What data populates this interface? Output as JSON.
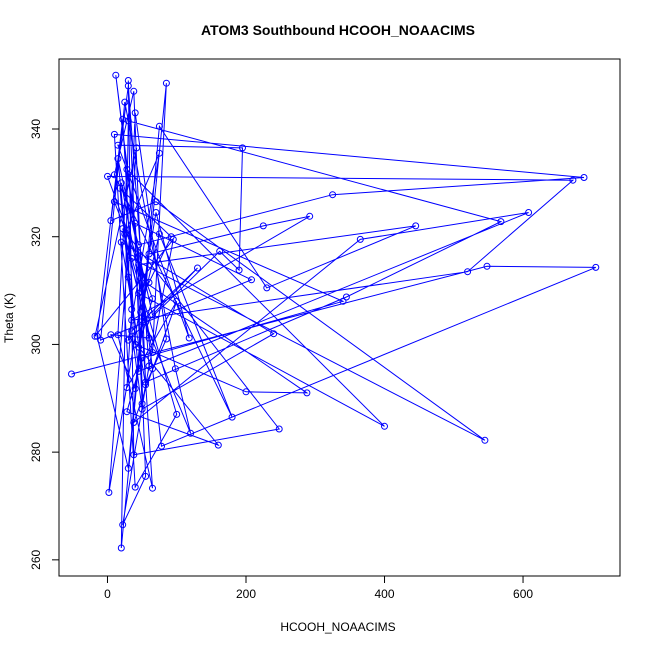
{
  "chart_data": {
    "type": "line",
    "title": "ATOM3 Southbound HCOOH_NOAACIMS",
    "xlabel": "HCOOH_NOAACIMS",
    "ylabel": "Theta (K)",
    "xlim": [
      -70,
      740
    ],
    "ylim": [
      257,
      353
    ],
    "xticks": [
      0,
      200,
      400,
      600
    ],
    "yticks": [
      260,
      280,
      300,
      320,
      340
    ],
    "grid": false,
    "legend": "none",
    "colors": {
      "series": "#0000ff",
      "axes": "#000000"
    },
    "series": [
      {
        "points": [
          [
            -52,
            294.5
          ],
          [
            548,
            314.5
          ],
          [
            705,
            314.3
          ],
          [
            78,
            281.1
          ],
          [
            65,
            295.5
          ],
          [
            12,
            350.0
          ],
          [
            55,
            304.1
          ],
          [
            22,
            321.5
          ],
          [
            248,
            284.3
          ],
          [
            38,
            279.5
          ],
          [
            30,
            349.0
          ],
          [
            50,
            289.0
          ],
          [
            95,
            319.5
          ],
          [
            -18,
            301.5
          ],
          [
            42,
            336.5
          ],
          [
            2,
            272.5
          ],
          [
            70,
            324.5
          ],
          [
            118,
            301.2
          ],
          [
            15,
            337.0
          ],
          [
            195,
            336.5
          ],
          [
            190,
            313.8
          ],
          [
            162,
            317.3
          ],
          [
            30,
            300.8
          ],
          [
            75,
            335.5
          ],
          [
            25,
            320.5
          ],
          [
            60,
            301.2
          ],
          [
            5,
            301.8
          ],
          [
            40,
            291.8
          ],
          [
            85,
            348.5
          ],
          [
            65,
            298.5
          ],
          [
            20,
            330.0
          ],
          [
            45,
            318.5
          ],
          [
            325,
            327.8
          ],
          [
            688,
            331.0
          ],
          [
            10,
            339.0
          ],
          [
            40,
            273.5
          ],
          [
            100,
            287.0
          ],
          [
            35,
            316.0
          ],
          [
            545,
            282.2
          ],
          [
            70,
            326.5
          ],
          [
            5,
            323.0
          ],
          [
            30,
            348.0
          ],
          [
            60,
            296.0
          ],
          [
            22,
            266.5
          ],
          [
            55,
            275.5
          ],
          [
            45,
            309.5
          ],
          [
            400,
            284.8
          ],
          [
            28,
            332.5
          ],
          [
            15,
            301.8
          ],
          [
            65,
            273.3
          ],
          [
            40,
            322.5
          ],
          [
            208,
            312.0
          ],
          [
            -10,
            300.8
          ],
          [
            25,
            345.0
          ],
          [
            98,
            295.5
          ],
          [
            120,
            283.5
          ],
          [
            48,
            306.0
          ],
          [
            75,
            320.5
          ],
          [
            180,
            286.5
          ],
          [
            10,
            331.5
          ],
          [
            38,
            347.0
          ],
          [
            55,
            293.0
          ],
          [
            345,
            308.8
          ],
          [
            568,
            322.8
          ],
          [
            30,
            341.5
          ],
          [
            20,
            262.2
          ],
          [
            60,
            316.8
          ],
          [
            225,
            322.0
          ],
          [
            292,
            323.8
          ],
          [
            35,
            304.5
          ],
          [
            520,
            313.5
          ],
          [
            672,
            330.5
          ],
          [
            0,
            331.2
          ],
          [
            65,
            308.5
          ],
          [
            45,
            299.5
          ],
          [
            160,
            281.3
          ],
          [
            28,
            287.5
          ],
          [
            50,
            297.5
          ],
          [
            340,
            308.0
          ],
          [
            10,
            326.5
          ],
          [
            55,
            311.5
          ],
          [
            288,
            291.0
          ],
          [
            200,
            291.2
          ],
          [
            40,
            300.0
          ],
          [
            22,
            341.8
          ],
          [
            -15,
            301.5
          ],
          [
            30,
            277.0
          ],
          [
            75,
            340.5
          ],
          [
            230,
            310.5
          ],
          [
            445,
            322.0
          ],
          [
            45,
            314.8
          ],
          [
            60,
            311.5
          ],
          [
            92,
            320.0
          ],
          [
            18,
            329.0
          ],
          [
            35,
            306.5
          ],
          [
            28,
            292.0
          ],
          [
            100,
            308.0
          ],
          [
            38,
            285.5
          ],
          [
            365,
            319.5
          ],
          [
            608,
            324.5
          ],
          [
            45,
            295.0
          ],
          [
            15,
            334.5
          ],
          [
            65,
            305.5
          ],
          [
            130,
            314.2
          ],
          [
            35,
            302.5
          ],
          [
            50,
            288.0
          ],
          [
            240,
            302.0
          ],
          [
            20,
            319.0
          ],
          [
            55,
            292.5
          ],
          [
            85,
            301.0
          ],
          [
            40,
            343.0
          ],
          [
            30,
            312.5
          ]
        ]
      }
    ]
  }
}
